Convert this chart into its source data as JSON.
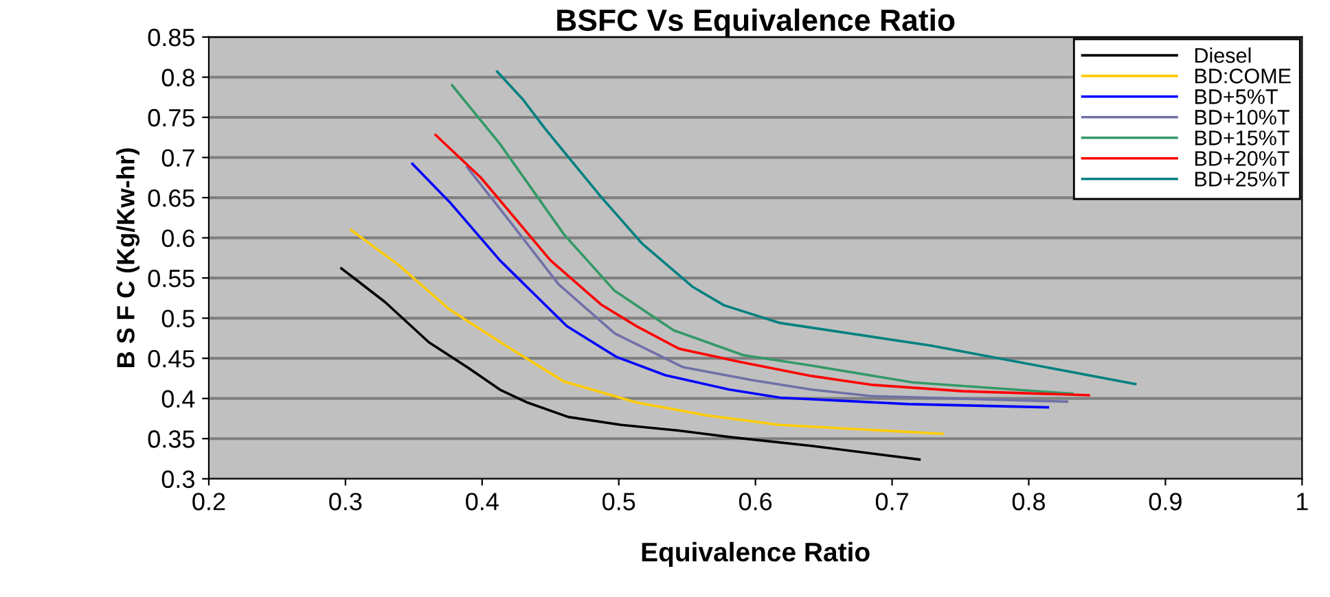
{
  "chart_data": {
    "type": "line",
    "title": "BSFC Vs Equivalence Ratio",
    "xlabel": "Equivalence Ratio",
    "ylabel": "B S F C (Kg/Kw-hr)",
    "xlim": [
      0.2,
      1
    ],
    "xticks": [
      0.2,
      0.3,
      0.4,
      0.5,
      0.6,
      0.7,
      0.8,
      0.9,
      1
    ],
    "ylim": [
      0.3,
      0.85
    ],
    "yticks": [
      0.3,
      0.35,
      0.4,
      0.45,
      0.5,
      0.55,
      0.6,
      0.65,
      0.7,
      0.75,
      0.8,
      0.85
    ],
    "grid": "y",
    "legend": "top right",
    "marker": "none",
    "line_style": "solid",
    "series": [
      {
        "name": "Diesel",
        "color": "#000000",
        "x": [
          0.297,
          0.329,
          0.361,
          0.39,
          0.413,
          0.433,
          0.463,
          0.502,
          0.544,
          0.581,
          0.641,
          0.72
        ],
        "values": [
          0.562,
          0.52,
          0.47,
          0.438,
          0.411,
          0.395,
          0.377,
          0.367,
          0.36,
          0.352,
          0.341,
          0.324
        ]
      },
      {
        "name": "BD:COME",
        "color": "#ffcc00",
        "x": [
          0.304,
          0.339,
          0.376,
          0.42,
          0.46,
          0.513,
          0.564,
          0.618,
          0.737
        ],
        "values": [
          0.61,
          0.566,
          0.511,
          0.463,
          0.421,
          0.395,
          0.379,
          0.367,
          0.356
        ]
      },
      {
        "name": "BD+5%T",
        "color": "#0000ff",
        "x": [
          0.349,
          0.376,
          0.413,
          0.462,
          0.498,
          0.534,
          0.581,
          0.618,
          0.712,
          0.814
        ],
        "values": [
          0.692,
          0.645,
          0.572,
          0.49,
          0.452,
          0.429,
          0.411,
          0.401,
          0.393,
          0.389
        ]
      },
      {
        "name": "BD+10%T",
        "color": "#7070a8",
        "x": [
          0.389,
          0.42,
          0.456,
          0.497,
          0.547,
          0.597,
          0.641,
          0.685,
          0.828
        ],
        "values": [
          0.688,
          0.621,
          0.542,
          0.481,
          0.439,
          0.423,
          0.411,
          0.403,
          0.396
        ]
      },
      {
        "name": "BD+15%T",
        "color": "#339966",
        "x": [
          0.378,
          0.413,
          0.46,
          0.497,
          0.54,
          0.591,
          0.641,
          0.715,
          0.832
        ],
        "values": [
          0.79,
          0.717,
          0.604,
          0.534,
          0.485,
          0.454,
          0.441,
          0.42,
          0.406
        ]
      },
      {
        "name": "BD+20%T",
        "color": "#ff0000",
        "x": [
          0.366,
          0.399,
          0.45,
          0.487,
          0.513,
          0.544,
          0.587,
          0.641,
          0.685,
          0.752,
          0.844
        ],
        "values": [
          0.728,
          0.675,
          0.572,
          0.517,
          0.49,
          0.462,
          0.446,
          0.428,
          0.417,
          0.409,
          0.404
        ]
      },
      {
        "name": "BD+25%T",
        "color": "#008080",
        "x": [
          0.411,
          0.43,
          0.446,
          0.487,
          0.517,
          0.554,
          0.577,
          0.618,
          0.728,
          0.878
        ],
        "values": [
          0.807,
          0.772,
          0.736,
          0.651,
          0.593,
          0.539,
          0.516,
          0.494,
          0.466,
          0.418
        ]
      }
    ]
  }
}
